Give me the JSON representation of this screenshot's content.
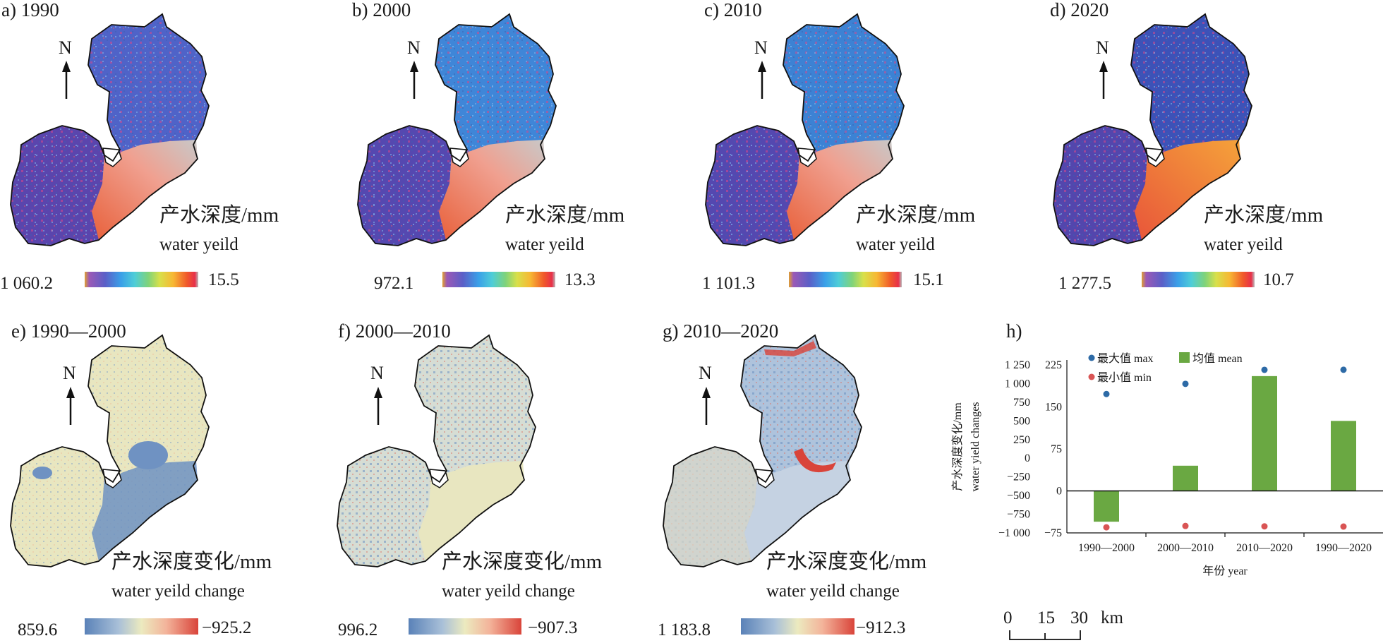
{
  "panels": {
    "a": {
      "title": "a) 1990",
      "label_cn": "产水深度/mm",
      "label_en": "water yeild",
      "max": "1 060.2",
      "min": "15.5"
    },
    "b": {
      "title": "b) 2000",
      "label_cn": "产水深度/mm",
      "label_en": "water yeild",
      "max": "972.1",
      "min": "13.3"
    },
    "c": {
      "title": "c) 2010",
      "label_cn": "产水深度/mm",
      "label_en": "water yeild",
      "max": "1 101.3",
      "min": "15.1"
    },
    "d": {
      "title": "d) 2020",
      "label_cn": "产水深度/mm",
      "label_en": "water yeild",
      "max": "1 277.5",
      "min": "10.7"
    },
    "e": {
      "title": "e) 1990—2000",
      "label_cn": "产水深度变化/mm",
      "label_en": "water yeild change",
      "max": "859.6",
      "min": "−925.2"
    },
    "f": {
      "title": "f) 2000—2010",
      "label_cn": "产水深度变化/mm",
      "label_en": "water yeild change",
      "max": "996.2",
      "min": "−907.3"
    },
    "g": {
      "title": "g) 2010—2020",
      "label_cn": "产水深度变化/mm",
      "label_en": "water yeild change",
      "max": "1 183.8",
      "min": "−912.3"
    }
  },
  "north_label": "N",
  "colors": {
    "rainbow": [
      "#9b59b6",
      "#5b5fc7",
      "#3aa0e8",
      "#4ecdd8",
      "#7fd37a",
      "#d8e04a",
      "#f7b733",
      "#f0592a",
      "#e8304a"
    ],
    "diverging": [
      "#5a82b8",
      "#a9c0d8",
      "#eceabf",
      "#f3b39a",
      "#d9443a"
    ],
    "bar": "#6aa842",
    "max_dot": "#2d6aa6",
    "min_dot": "#d95454"
  },
  "scale_bar": {
    "ticks": [
      "0",
      "15",
      "30"
    ],
    "unit": "km"
  },
  "chart_data": {
    "type": "bar",
    "title": "h)",
    "categories": [
      "1990—2000",
      "2000—2010",
      "2010—2020",
      "1990—2020"
    ],
    "series": [
      {
        "name": "均值 mean",
        "values": [
          -55,
          45,
          205,
          125
        ]
      },
      {
        "name": "最大值 max",
        "values": [
          860,
          996,
          1184,
          1185
        ]
      },
      {
        "name": "最小值 min",
        "values": [
          -925,
          -907,
          -912,
          -915
        ]
      }
    ],
    "left_axis": {
      "ticks": [
        "1 250",
        "1 000",
        "750",
        "500",
        "250",
        "0",
        "−250",
        "−500",
        "−750",
        "−1 000"
      ],
      "range": [
        -1000,
        1250
      ]
    },
    "right_axis": {
      "ticks": [
        "225",
        "150",
        "75",
        "0",
        "−75"
      ],
      "range": [
        -75,
        225
      ]
    },
    "ylabel_cn": "产水深度变化/mm",
    "ylabel_en": "water yield changes",
    "xlabel": "年份 year",
    "legend": {
      "max": "最大值 max",
      "mean": "均值 mean",
      "min": "最小值 min"
    }
  }
}
